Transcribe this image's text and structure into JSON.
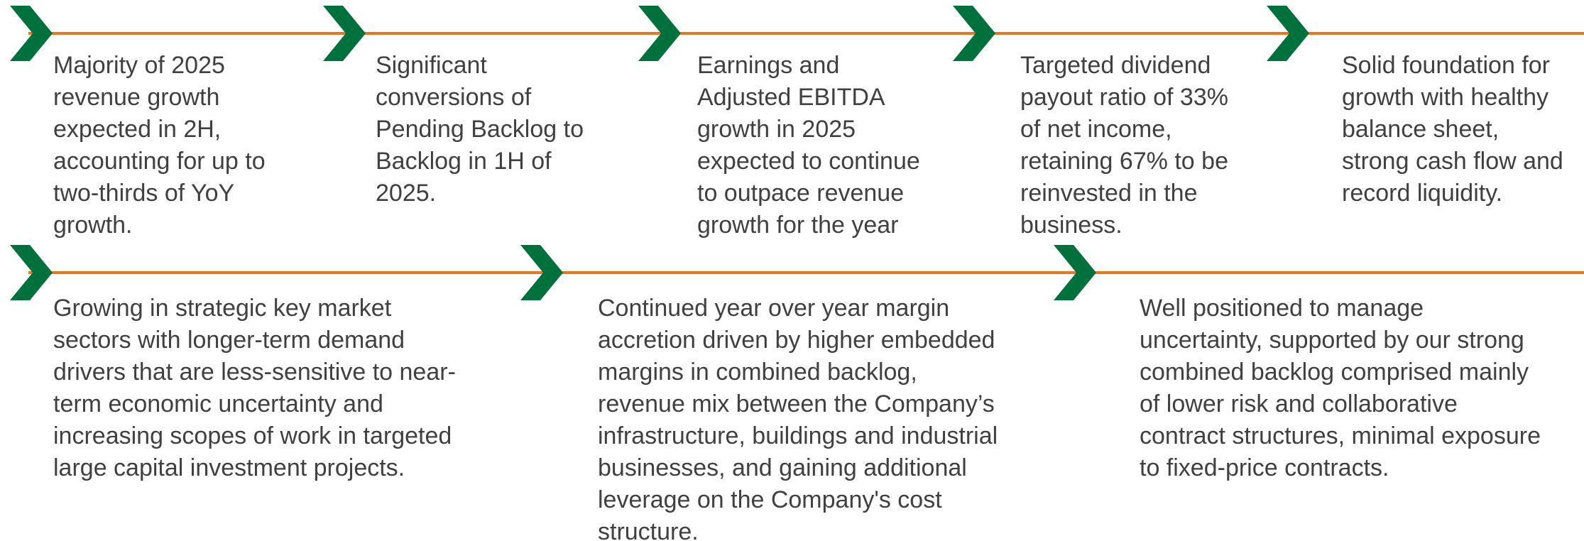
{
  "rows": [
    {
      "items": [
        {
          "lines": [
            "Majority of 2025",
            "revenue growth",
            "expected in 2H,",
            "accounting for up to",
            "two-thirds of YoY",
            "growth."
          ]
        },
        {
          "lines": [
            "Significant",
            "conversions of",
            "Pending Backlog to",
            "Backlog in 1H of",
            "2025."
          ]
        },
        {
          "lines": [
            "Earnings and",
            "Adjusted EBITDA",
            "growth in 2025",
            "expected to continue",
            "to outpace revenue",
            "growth for the year"
          ]
        },
        {
          "lines": [
            "Targeted dividend",
            "payout ratio of 33%",
            "of net income,",
            "retaining 67% to be",
            "reinvested in the",
            "business."
          ]
        },
        {
          "lines": [
            "Solid foundation for",
            "growth with healthy",
            "balance sheet,",
            "strong cash flow and",
            "record liquidity."
          ]
        }
      ]
    },
    {
      "items": [
        {
          "lines": [
            "Growing in strategic key market",
            "sectors with longer-term demand",
            "drivers that are less-sensitive to near-",
            "term economic uncertainty and",
            "increasing scopes of work in targeted",
            "large capital investment projects."
          ]
        },
        {
          "lines": [
            "Continued year over year margin",
            "accretion driven by higher embedded",
            "margins in combined backlog,",
            "revenue mix between the Company’s",
            "infrastructure, buildings and industrial",
            "businesses, and gaining additional",
            "leverage on the Company's cost",
            "structure."
          ]
        },
        {
          "lines": [
            "Well positioned to manage",
            "uncertainty, supported by our strong",
            "combined backlog comprised mainly",
            "of lower risk and collaborative",
            "contract structures, minimal exposure",
            "to fixed-price contracts."
          ]
        }
      ]
    }
  ]
}
